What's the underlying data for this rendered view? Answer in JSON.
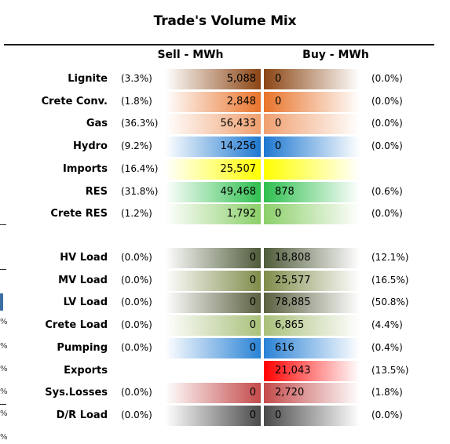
{
  "title": "Trade's Volume Mix",
  "headers": {
    "sell": "Sell - MWh",
    "buy": "Buy - MWh"
  },
  "edge_glyph": "%",
  "colors": {
    "lignite": "#8b4513",
    "crete_conv": "#e8732a",
    "gas": "#f0a070",
    "hydro": "#1e78d0",
    "imports": "#ffff00",
    "res": "#2fbf4f",
    "crete_res": "#8ccf6a",
    "hv_load": "#4f5b3a",
    "mv_load": "#7f8c4a",
    "lv_load": "#5a6040",
    "crete_load": "#a9c07a",
    "pumping": "#2a82d6",
    "exports": "#ff0000",
    "sys_losses": "#c44a4a",
    "dr_load": "#4a4a4a"
  },
  "rows_top": [
    {
      "key": "lignite",
      "label": "Lignite",
      "sell_pct": "(3.3%)",
      "sell": "5,088",
      "buy": "0",
      "buy_pct": "(0.0%)"
    },
    {
      "key": "crete_conv",
      "label": "Crete Conv.",
      "sell_pct": "(1.8%)",
      "sell": "2,848",
      "buy": "0",
      "buy_pct": "(0.0%)"
    },
    {
      "key": "gas",
      "label": "Gas",
      "sell_pct": "(36.3%)",
      "sell": "56,433",
      "buy": "0",
      "buy_pct": "(0.0%)"
    },
    {
      "key": "hydro",
      "label": "Hydro",
      "sell_pct": "(9.2%)",
      "sell": "14,256",
      "buy": "0",
      "buy_pct": "(0.0%)"
    },
    {
      "key": "imports",
      "label": "Imports",
      "sell_pct": "(16.4%)",
      "sell": "25,507",
      "buy": "",
      "buy_pct": ""
    },
    {
      "key": "res",
      "label": "RES",
      "sell_pct": "(31.8%)",
      "sell": "49,468",
      "buy": "878",
      "buy_pct": "(0.6%)"
    },
    {
      "key": "crete_res",
      "label": "Crete RES",
      "sell_pct": "(1.2%)",
      "sell": "1,792",
      "buy": "0",
      "buy_pct": "(0.0%)"
    }
  ],
  "rows_bottom": [
    {
      "key": "hv_load",
      "label": "HV Load",
      "sell_pct": "(0.0%)",
      "sell": "0",
      "buy": "18,808",
      "buy_pct": "(12.1%)"
    },
    {
      "key": "mv_load",
      "label": "MV Load",
      "sell_pct": "(0.0%)",
      "sell": "0",
      "buy": "25,577",
      "buy_pct": "(16.5%)"
    },
    {
      "key": "lv_load",
      "label": "LV Load",
      "sell_pct": "(0.0%)",
      "sell": "0",
      "buy": "78,885",
      "buy_pct": "(50.8%)"
    },
    {
      "key": "crete_load",
      "label": "Crete Load",
      "sell_pct": "(0.0%)",
      "sell": "0",
      "buy": "6,865",
      "buy_pct": "(4.4%)"
    },
    {
      "key": "pumping",
      "label": "Pumping",
      "sell_pct": "(0.0%)",
      "sell": "0",
      "buy": "616",
      "buy_pct": "(0.4%)"
    },
    {
      "key": "exports",
      "label": "Exports",
      "sell_pct": "",
      "sell": "",
      "buy": "21,043",
      "buy_pct": "(13.5%)"
    },
    {
      "key": "sys_losses",
      "label": "Sys.Losses",
      "sell_pct": "(0.0%)",
      "sell": "0",
      "buy": "2,720",
      "buy_pct": "(1.8%)"
    },
    {
      "key": "dr_load",
      "label": "D/R Load",
      "sell_pct": "(0.0%)",
      "sell": "0",
      "buy": "0",
      "buy_pct": "(0.0%)"
    }
  ]
}
